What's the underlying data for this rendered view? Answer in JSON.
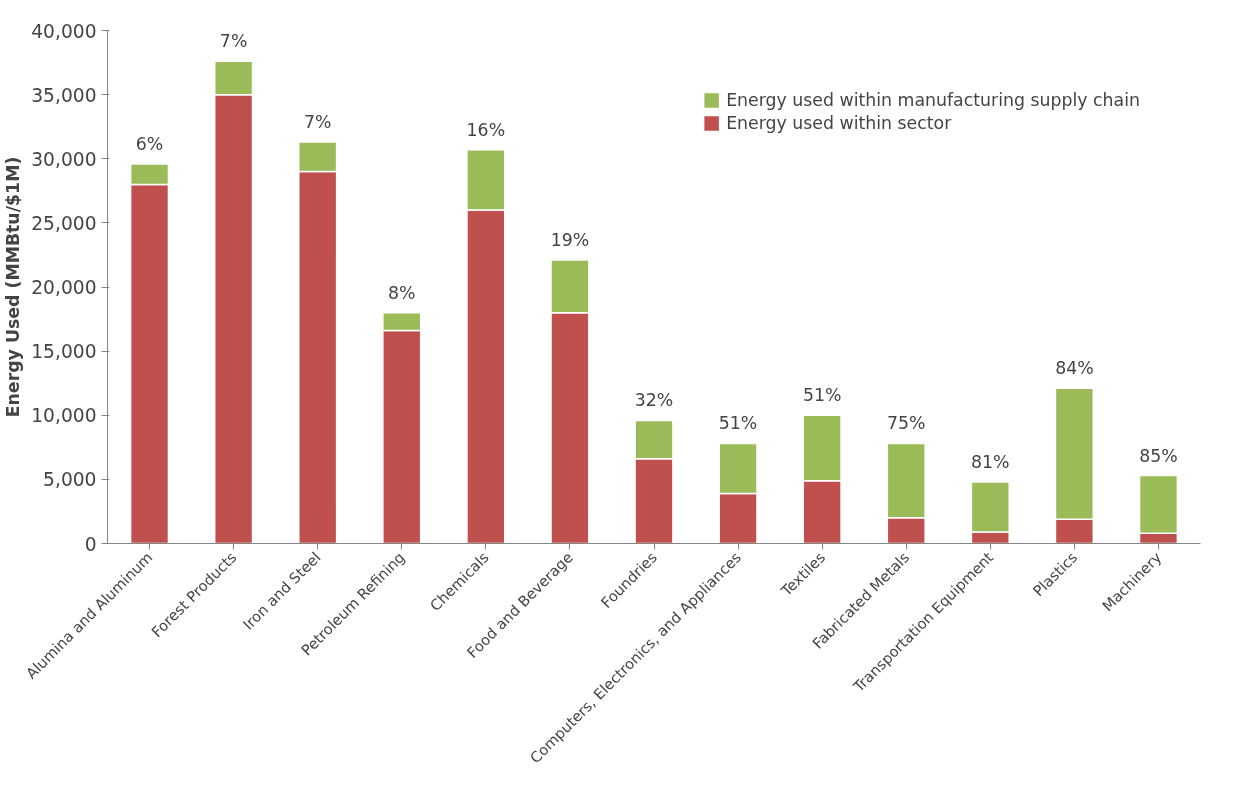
{
  "chart_data": {
    "type": "bar",
    "stacked": true,
    "ylabel": "Energy Used (MMBtu/$1M)",
    "categories": [
      "Alumina and Aluminum",
      "Forest Products",
      "Iron and Steel",
      "Petroleum Refining",
      "Chemicals",
      "Food and Beverage",
      "Foundries",
      "Computers, Electronics, and Appliances",
      "Textiles",
      "Fabricated Metals",
      "Transportation Equipment",
      "Plastics",
      "Machinery"
    ],
    "series": [
      {
        "name": "Energy used within sector",
        "color": "#c0504d",
        "values": [
          28000,
          35000,
          29000,
          16600,
          26000,
          18000,
          6600,
          3900,
          4900,
          2000,
          900,
          1900,
          800
        ]
      },
      {
        "name": "Energy used within manufacturing supply chain",
        "color": "#9bbb59",
        "values": [
          1600,
          2600,
          2300,
          1400,
          4700,
          4100,
          3000,
          3900,
          5100,
          5800,
          3900,
          10200,
          4500
        ]
      }
    ],
    "annotations": [
      {
        "text": "6%",
        "x": "Alumina and Aluminum",
        "y": 29600
      },
      {
        "text": "7%",
        "x": "Forest Products",
        "y": 37600
      },
      {
        "text": "7%",
        "x": "Iron and Steel",
        "y": 31300
      },
      {
        "text": "8%",
        "x": "Petroleum Refining",
        "y": 18000
      },
      {
        "text": "16%",
        "x": "Chemicals",
        "y": 30700
      },
      {
        "text": "19%",
        "x": "Food and Beverage",
        "y": 22100
      },
      {
        "text": "32%",
        "x": "Foundries",
        "y": 9600
      },
      {
        "text": "51%",
        "x": "Computers, Electronics, and Appliances",
        "y": 7800
      },
      {
        "text": "51%",
        "x": "Textiles",
        "y": 10000
      },
      {
        "text": "75%",
        "x": "Fabricated Metals",
        "y": 7800
      },
      {
        "text": "81%",
        "x": "Transportation Equipment",
        "y": 4800
      },
      {
        "text": "84%",
        "x": "Plastics",
        "y": 12100
      },
      {
        "text": "85%",
        "x": "Machinery",
        "y": 5300
      }
    ],
    "ylim": [
      0,
      40000
    ],
    "yticks": [
      {
        "value": 0,
        "label": "0"
      },
      {
        "value": 5000,
        "label": "5,000"
      },
      {
        "value": 10000,
        "label": "10,000"
      },
      {
        "value": 15000,
        "label": "15,000"
      },
      {
        "value": 20000,
        "label": "20,000"
      },
      {
        "value": 25000,
        "label": "25,000"
      },
      {
        "value": 30000,
        "label": "30,000"
      },
      {
        "value": 35000,
        "label": "35,000"
      },
      {
        "value": 40000,
        "label": "40,000"
      }
    ],
    "grid": false,
    "legend": "top right"
  }
}
